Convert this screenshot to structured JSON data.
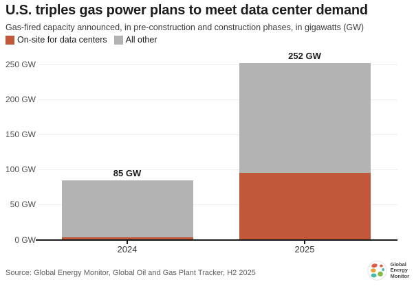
{
  "header": {
    "title": "U.S. triples gas power plans to meet data center demand",
    "subtitle": "Gas-fired capacity announced, in pre-construction and construction phases, in gigawatts (GW)"
  },
  "legend": [
    {
      "label": "On-site for data centers",
      "color": "#c2583a"
    },
    {
      "label": "All other",
      "color": "#b3b3b3"
    }
  ],
  "chart_data": {
    "type": "bar",
    "stacked": true,
    "title": "U.S. triples gas power plans to meet data center demand",
    "subtitle": "Gas-fired capacity announced, in pre-construction and construction phases, in gigawatts (GW)",
    "categories": [
      "2024",
      "2025"
    ],
    "series": [
      {
        "name": "On-site for data centers",
        "color": "#c2583a",
        "values": [
          4,
          96
        ]
      },
      {
        "name": "All other",
        "color": "#b3b3b3",
        "values": [
          81,
          156
        ]
      }
    ],
    "totals": [
      85,
      252
    ],
    "total_labels": [
      "85 GW",
      "252 GW"
    ],
    "y_ticks": [
      "0 GW",
      "50 GW",
      "100 GW",
      "150 GW",
      "200 GW",
      "250 GW"
    ],
    "y_tick_values": [
      0,
      50,
      100,
      150,
      200,
      250
    ],
    "ylim": [
      0,
      265
    ],
    "unit": "GW",
    "grid": "horizontal",
    "legend_position": "top-left"
  },
  "footer": {
    "source": "Source: Global Energy Monitor, Global Oil and Gas Plant Tracker, H2 2025",
    "logo_text": [
      "Global",
      "Energy",
      "Monitor"
    ]
  }
}
